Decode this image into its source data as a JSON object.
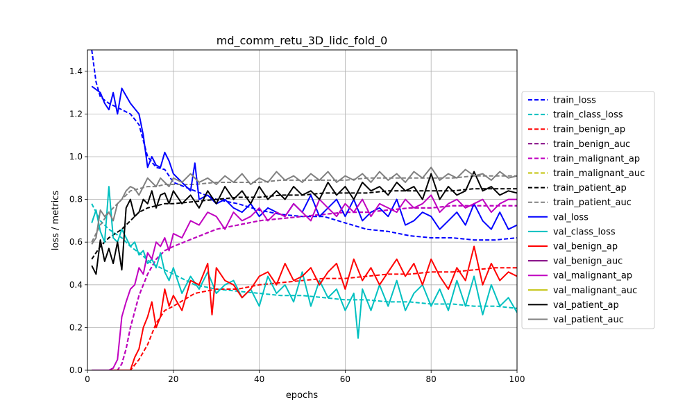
{
  "chart_data": {
    "type": "line",
    "title": "md_comm_retu_3D_lidc_fold_0",
    "xlabel": "epochs",
    "ylabel": "loss / metrics",
    "xlim": [
      0,
      100
    ],
    "ylim": [
      0,
      1.5
    ],
    "xticks": [
      "0",
      "20",
      "40",
      "60",
      "80",
      "100"
    ],
    "yticks": [
      "0.0",
      "0.2",
      "0.4",
      "0.6",
      "0.8",
      "1.0",
      "1.2",
      "1.4"
    ],
    "grid": true,
    "legend_position": "right, outside plot area",
    "series": [
      {
        "name": "train_loss",
        "color": "#0000ff",
        "dash": true,
        "x": [
          1,
          2,
          3,
          5,
          8,
          10,
          12,
          14,
          16,
          18,
          20,
          25,
          30,
          35,
          40,
          45,
          50,
          55,
          60,
          65,
          70,
          75,
          80,
          85,
          90,
          95,
          100
        ],
        "y": [
          1.5,
          1.35,
          1.28,
          1.25,
          1.22,
          1.2,
          1.15,
          1.0,
          0.95,
          0.94,
          0.88,
          0.84,
          0.8,
          0.78,
          0.75,
          0.73,
          0.72,
          0.72,
          0.69,
          0.66,
          0.65,
          0.63,
          0.62,
          0.62,
          0.61,
          0.61,
          0.62
        ]
      },
      {
        "name": "train_class_loss",
        "color": "#00c0c0",
        "dash": true,
        "x": [
          1,
          3,
          5,
          8,
          10,
          12,
          15,
          20,
          25,
          30,
          35,
          40,
          45,
          50,
          55,
          60,
          65,
          70,
          75,
          80,
          85,
          90,
          95,
          100
        ],
        "y": [
          0.78,
          0.7,
          0.66,
          0.62,
          0.58,
          0.55,
          0.5,
          0.45,
          0.4,
          0.38,
          0.37,
          0.36,
          0.35,
          0.35,
          0.34,
          0.33,
          0.33,
          0.32,
          0.32,
          0.31,
          0.31,
          0.3,
          0.3,
          0.29
        ]
      },
      {
        "name": "train_benign_ap",
        "color": "#ff0000",
        "dash": true,
        "x": [
          1,
          10,
          12,
          14,
          16,
          18,
          20,
          25,
          30,
          35,
          40,
          45,
          50,
          55,
          60,
          65,
          70,
          75,
          80,
          85,
          90,
          95,
          100
        ],
        "y": [
          0.0,
          0.0,
          0.05,
          0.12,
          0.22,
          0.28,
          0.3,
          0.36,
          0.38,
          0.38,
          0.4,
          0.41,
          0.42,
          0.43,
          0.43,
          0.44,
          0.45,
          0.45,
          0.46,
          0.46,
          0.47,
          0.48,
          0.48
        ]
      },
      {
        "name": "train_benign_auc",
        "color": "#800080",
        "dash": true,
        "x": [
          1,
          7,
          8,
          9,
          10,
          12,
          14,
          16,
          18,
          20,
          25,
          30,
          35,
          40,
          45,
          50,
          55,
          60,
          65,
          70,
          75,
          80,
          85,
          90,
          95,
          100
        ],
        "y": [
          0.0,
          0.0,
          0.03,
          0.1,
          0.2,
          0.35,
          0.45,
          0.52,
          0.56,
          0.58,
          0.62,
          0.66,
          0.68,
          0.7,
          0.71,
          0.72,
          0.73,
          0.74,
          0.74,
          0.75,
          0.76,
          0.76,
          0.77,
          0.77,
          0.77,
          0.77
        ]
      },
      {
        "name": "train_malignant_ap",
        "color": "#c000c0",
        "dash": true,
        "x": [
          1,
          7,
          8,
          9,
          10,
          12,
          14,
          16,
          18,
          20,
          25,
          30,
          35,
          40,
          45,
          50,
          55,
          60,
          65,
          70,
          75,
          80,
          85,
          90,
          95,
          100
        ],
        "y": [
          0.0,
          0.0,
          0.03,
          0.1,
          0.2,
          0.35,
          0.45,
          0.52,
          0.56,
          0.58,
          0.62,
          0.66,
          0.68,
          0.7,
          0.71,
          0.72,
          0.73,
          0.74,
          0.74,
          0.75,
          0.76,
          0.76,
          0.77,
          0.77,
          0.77,
          0.77
        ]
      },
      {
        "name": "train_malignant_auc",
        "color": "#c0c000",
        "dash": true,
        "x": [],
        "y": []
      },
      {
        "name": "train_patient_ap",
        "color": "#000000",
        "dash": true,
        "x": [
          1,
          3,
          5,
          8,
          10,
          12,
          14,
          16,
          18,
          20,
          25,
          30,
          35,
          40,
          45,
          50,
          55,
          60,
          65,
          70,
          75,
          80,
          85,
          90,
          95,
          100
        ],
        "y": [
          0.52,
          0.58,
          0.62,
          0.66,
          0.7,
          0.74,
          0.76,
          0.77,
          0.78,
          0.78,
          0.79,
          0.8,
          0.81,
          0.81,
          0.82,
          0.82,
          0.83,
          0.83,
          0.83,
          0.84,
          0.84,
          0.84,
          0.84,
          0.85,
          0.85,
          0.85
        ]
      },
      {
        "name": "train_patient_auc",
        "color": "#808080",
        "dash": true,
        "x": [
          1,
          3,
          5,
          8,
          10,
          12,
          14,
          16,
          18,
          20,
          25,
          30,
          35,
          40,
          45,
          50,
          55,
          60,
          65,
          70,
          75,
          80,
          85,
          90,
          95,
          100
        ],
        "y": [
          0.6,
          0.68,
          0.74,
          0.8,
          0.84,
          0.85,
          0.86,
          0.86,
          0.87,
          0.87,
          0.87,
          0.88,
          0.88,
          0.88,
          0.89,
          0.89,
          0.89,
          0.89,
          0.9,
          0.9,
          0.9,
          0.9,
          0.9,
          0.91,
          0.91,
          0.91
        ]
      },
      {
        "name": "val_loss",
        "color": "#0000ff",
        "dash": false,
        "x": [
          1,
          3,
          4,
          5,
          6,
          7,
          8,
          10,
          12,
          13,
          14,
          15,
          16,
          17,
          18,
          19,
          20,
          22,
          24,
          25,
          26,
          28,
          30,
          32,
          34,
          36,
          38,
          40,
          42,
          44,
          46,
          48,
          50,
          52,
          54,
          56,
          58,
          60,
          62,
          64,
          66,
          68,
          70,
          72,
          74,
          76,
          78,
          80,
          82,
          84,
          86,
          88,
          90,
          92,
          94,
          96,
          98,
          100
        ],
        "y": [
          1.33,
          1.3,
          1.25,
          1.22,
          1.3,
          1.2,
          1.32,
          1.25,
          1.2,
          1.1,
          0.95,
          1.0,
          0.96,
          0.95,
          1.02,
          0.98,
          0.92,
          0.88,
          0.84,
          0.97,
          0.8,
          0.82,
          0.78,
          0.8,
          0.76,
          0.74,
          0.78,
          0.72,
          0.76,
          0.74,
          0.72,
          0.78,
          0.74,
          0.82,
          0.72,
          0.76,
          0.8,
          0.72,
          0.8,
          0.7,
          0.74,
          0.76,
          0.72,
          0.8,
          0.68,
          0.7,
          0.74,
          0.72,
          0.66,
          0.7,
          0.74,
          0.68,
          0.78,
          0.7,
          0.66,
          0.74,
          0.66,
          0.68
        ]
      },
      {
        "name": "val_class_loss",
        "color": "#00c0c0",
        "dash": false,
        "x": [
          1,
          2,
          3,
          4,
          5,
          6,
          7,
          8,
          9,
          10,
          11,
          12,
          13,
          14,
          15,
          16,
          17,
          18,
          19,
          20,
          22,
          24,
          26,
          28,
          30,
          32,
          34,
          36,
          38,
          40,
          42,
          44,
          46,
          48,
          50,
          52,
          54,
          56,
          58,
          60,
          62,
          63,
          64,
          66,
          68,
          70,
          72,
          74,
          76,
          78,
          80,
          82,
          84,
          86,
          88,
          90,
          92,
          94,
          96,
          98,
          100
        ],
        "y": [
          0.69,
          0.75,
          0.65,
          0.6,
          0.86,
          0.62,
          0.6,
          0.66,
          0.62,
          0.58,
          0.6,
          0.54,
          0.56,
          0.5,
          0.52,
          0.48,
          0.55,
          0.46,
          0.42,
          0.48,
          0.36,
          0.44,
          0.38,
          0.46,
          0.36,
          0.4,
          0.42,
          0.34,
          0.38,
          0.3,
          0.44,
          0.36,
          0.4,
          0.32,
          0.46,
          0.3,
          0.42,
          0.34,
          0.38,
          0.28,
          0.36,
          0.15,
          0.38,
          0.28,
          0.4,
          0.3,
          0.42,
          0.28,
          0.36,
          0.4,
          0.3,
          0.38,
          0.28,
          0.42,
          0.3,
          0.44,
          0.26,
          0.4,
          0.3,
          0.34,
          0.27
        ]
      },
      {
        "name": "val_benign_ap",
        "color": "#ff0000",
        "dash": false,
        "x": [
          1,
          10,
          11,
          12,
          13,
          14,
          15,
          16,
          17,
          18,
          19,
          20,
          22,
          24,
          26,
          28,
          29,
          30,
          32,
          34,
          36,
          38,
          40,
          42,
          44,
          46,
          48,
          50,
          52,
          54,
          56,
          58,
          60,
          62,
          64,
          66,
          68,
          70,
          72,
          74,
          76,
          78,
          80,
          82,
          84,
          86,
          88,
          90,
          92,
          94,
          96,
          98,
          100
        ],
        "y": [
          0.0,
          0.0,
          0.06,
          0.1,
          0.2,
          0.25,
          0.32,
          0.2,
          0.25,
          0.38,
          0.3,
          0.35,
          0.28,
          0.42,
          0.4,
          0.5,
          0.26,
          0.48,
          0.42,
          0.4,
          0.34,
          0.38,
          0.44,
          0.46,
          0.4,
          0.5,
          0.42,
          0.44,
          0.48,
          0.4,
          0.46,
          0.5,
          0.38,
          0.52,
          0.42,
          0.48,
          0.4,
          0.46,
          0.52,
          0.44,
          0.5,
          0.4,
          0.52,
          0.44,
          0.38,
          0.48,
          0.42,
          0.58,
          0.4,
          0.5,
          0.42,
          0.46,
          0.44
        ]
      },
      {
        "name": "val_benign_auc",
        "color": "#800080",
        "dash": false,
        "x": [],
        "y": []
      },
      {
        "name": "val_malignant_ap",
        "color": "#c000c0",
        "dash": false,
        "x": [
          1,
          5,
          6,
          7,
          8,
          9,
          10,
          11,
          12,
          13,
          14,
          15,
          16,
          17,
          18,
          19,
          20,
          22,
          24,
          26,
          28,
          30,
          32,
          34,
          36,
          38,
          40,
          42,
          44,
          46,
          48,
          50,
          52,
          54,
          56,
          58,
          60,
          62,
          64,
          66,
          68,
          70,
          72,
          74,
          76,
          78,
          80,
          82,
          84,
          86,
          88,
          90,
          92,
          94,
          96,
          98,
          100
        ],
        "y": [
          0.0,
          0.0,
          0.01,
          0.05,
          0.25,
          0.32,
          0.38,
          0.4,
          0.48,
          0.45,
          0.55,
          0.52,
          0.6,
          0.58,
          0.62,
          0.56,
          0.64,
          0.62,
          0.7,
          0.68,
          0.74,
          0.72,
          0.66,
          0.74,
          0.7,
          0.72,
          0.76,
          0.7,
          0.74,
          0.72,
          0.78,
          0.74,
          0.7,
          0.8,
          0.76,
          0.72,
          0.78,
          0.74,
          0.8,
          0.72,
          0.78,
          0.76,
          0.74,
          0.8,
          0.76,
          0.78,
          0.82,
          0.74,
          0.78,
          0.8,
          0.76,
          0.78,
          0.8,
          0.74,
          0.78,
          0.8,
          0.8
        ]
      },
      {
        "name": "val_malignant_auc",
        "color": "#c0c000",
        "dash": false,
        "x": [],
        "y": []
      },
      {
        "name": "val_patient_ap",
        "color": "#000000",
        "dash": false,
        "x": [
          1,
          2,
          3,
          4,
          5,
          6,
          7,
          8,
          9,
          10,
          11,
          12,
          13,
          14,
          15,
          16,
          17,
          18,
          19,
          20,
          22,
          24,
          26,
          28,
          30,
          32,
          34,
          36,
          38,
          40,
          42,
          44,
          46,
          48,
          50,
          52,
          54,
          56,
          58,
          60,
          62,
          64,
          66,
          68,
          70,
          72,
          74,
          76,
          78,
          80,
          82,
          84,
          86,
          88,
          90,
          92,
          94,
          96,
          98,
          100
        ],
        "y": [
          0.49,
          0.45,
          0.61,
          0.51,
          0.57,
          0.5,
          0.6,
          0.47,
          0.76,
          0.8,
          0.72,
          0.74,
          0.8,
          0.78,
          0.84,
          0.76,
          0.82,
          0.83,
          0.78,
          0.84,
          0.78,
          0.82,
          0.76,
          0.84,
          0.78,
          0.86,
          0.8,
          0.84,
          0.78,
          0.86,
          0.8,
          0.84,
          0.8,
          0.86,
          0.82,
          0.84,
          0.8,
          0.88,
          0.82,
          0.86,
          0.8,
          0.88,
          0.84,
          0.86,
          0.82,
          0.88,
          0.84,
          0.86,
          0.8,
          0.92,
          0.8,
          0.86,
          0.82,
          0.84,
          0.93,
          0.84,
          0.86,
          0.82,
          0.84,
          0.83
        ]
      },
      {
        "name": "val_patient_auc",
        "color": "#808080",
        "dash": false,
        "x": [
          1,
          2,
          3,
          4,
          5,
          6,
          7,
          8,
          9,
          10,
          11,
          12,
          13,
          14,
          15,
          16,
          17,
          18,
          19,
          20,
          22,
          24,
          26,
          28,
          30,
          32,
          34,
          36,
          38,
          40,
          42,
          44,
          46,
          48,
          50,
          52,
          54,
          56,
          58,
          60,
          62,
          64,
          66,
          68,
          70,
          72,
          74,
          76,
          78,
          80,
          82,
          84,
          86,
          88,
          90,
          92,
          94,
          96,
          98,
          100
        ],
        "y": [
          0.59,
          0.62,
          0.75,
          0.72,
          0.74,
          0.7,
          0.78,
          0.8,
          0.84,
          0.86,
          0.85,
          0.82,
          0.86,
          0.9,
          0.88,
          0.86,
          0.9,
          0.88,
          0.86,
          0.9,
          0.88,
          0.92,
          0.88,
          0.9,
          0.87,
          0.91,
          0.88,
          0.92,
          0.87,
          0.9,
          0.88,
          0.93,
          0.89,
          0.91,
          0.88,
          0.92,
          0.89,
          0.93,
          0.88,
          0.91,
          0.89,
          0.92,
          0.88,
          0.93,
          0.89,
          0.92,
          0.88,
          0.93,
          0.9,
          0.95,
          0.89,
          0.92,
          0.9,
          0.94,
          0.91,
          0.92,
          0.89,
          0.93,
          0.9,
          0.91
        ]
      }
    ]
  }
}
